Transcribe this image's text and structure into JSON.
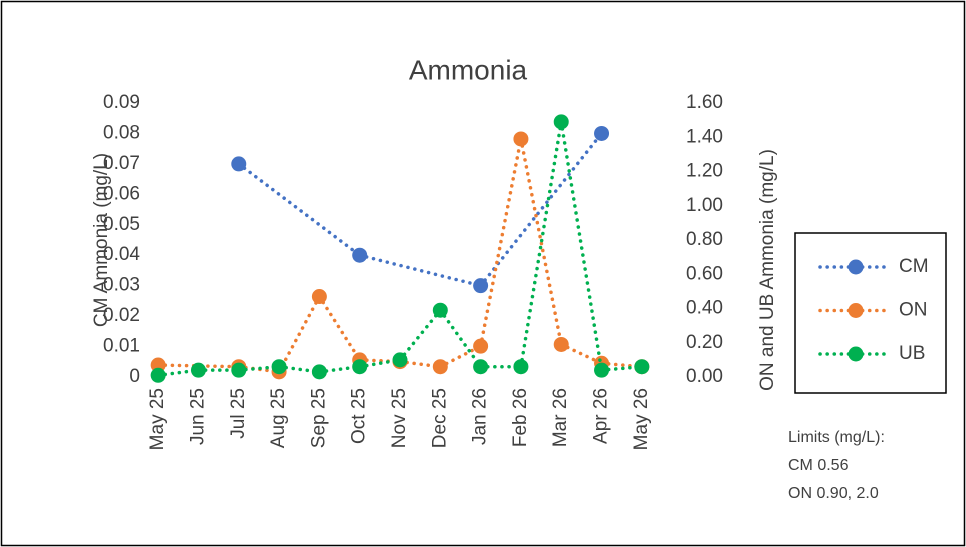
{
  "chart_data": {
    "type": "line",
    "title": "Ammonia",
    "categories": [
      "May 25",
      "Jun 25",
      "Jul 25",
      "Aug 25",
      "Sep 25",
      "Oct 25",
      "Nov 25",
      "Dec 25",
      "Jan 26",
      "Feb 26",
      "Mar 26",
      "Apr 26",
      "May 26"
    ],
    "y_label": "CM Ammonia (mg/L)",
    "y2_label": "ON and UB Ammonia (mg/L)",
    "ylim": [
      0,
      0.09
    ],
    "yticks": [
      0,
      0.01,
      0.02,
      0.03,
      0.04,
      0.05,
      0.06,
      0.07,
      0.08,
      0.09
    ],
    "y2lim": [
      0,
      1.6
    ],
    "y2ticks": [
      {
        "value": 0,
        "label": "0.00"
      },
      {
        "value": 0.2,
        "label": "0.20"
      },
      {
        "value": 0.4,
        "label": "0.40"
      },
      {
        "value": 0.6,
        "label": "0.60"
      },
      {
        "value": 0.8,
        "label": "0.80"
      },
      {
        "value": 1,
        "label": "1.00"
      },
      {
        "value": 1.2,
        "label": "1.20"
      },
      {
        "value": 1.4,
        "label": "1.40"
      },
      {
        "value": 1.6,
        "label": "1.60"
      }
    ],
    "connect_gaps": true,
    "legend": "right",
    "series": [
      {
        "name": "CM",
        "color": "#4472c4",
        "values": [
          null,
          null,
          0.07,
          null,
          null,
          0.04,
          null,
          null,
          0.03,
          null,
          null,
          0.08,
          null
        ]
      },
      {
        "name": "ON",
        "color": "#ed7d31",
        "axis": "y2",
        "values": [
          0.07,
          null,
          0.06,
          0.03,
          0.47,
          0.1,
          0.09,
          0.06,
          0.18,
          1.39,
          0.19,
          0.08,
          0.06
        ]
      },
      {
        "name": "UB",
        "color": "#00b050",
        "axis": "y2",
        "values": [
          0.01,
          0.04,
          0.04,
          0.06,
          0.03,
          0.06,
          0.1,
          0.39,
          0.06,
          0.06,
          1.49,
          0.04,
          0.06
        ]
      }
    ],
    "notes": [
      "Limits (mg/L):",
      "CM 0.56",
      "ON 0.90, 2.0"
    ]
  }
}
